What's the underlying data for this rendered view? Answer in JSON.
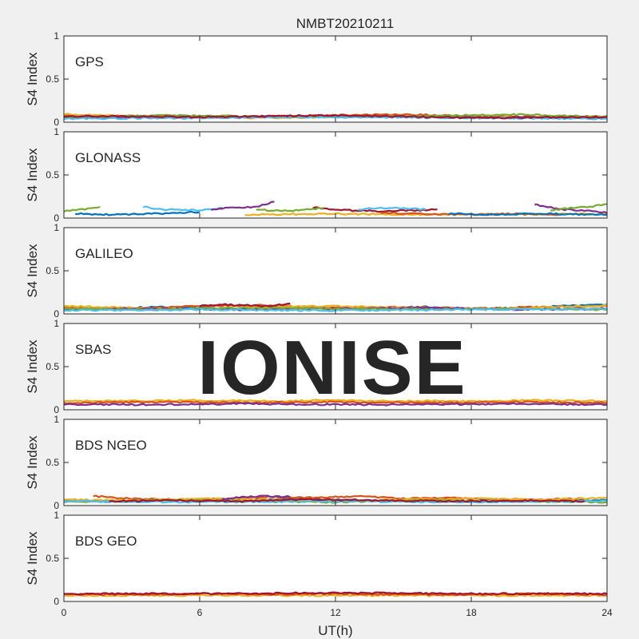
{
  "chart_data": {
    "type": "scatter",
    "title": "NMBT20210211",
    "xlabel": "UT(h)",
    "ylabel": "S4 Index",
    "xlim": [
      0,
      24
    ],
    "ylim": [
      0,
      1
    ],
    "x_ticks": [
      "0",
      "6",
      "12",
      "18",
      "24"
    ],
    "y_ticks": [
      "0",
      "0.5",
      "1"
    ],
    "watermark": "IONISE",
    "series_colors": [
      "#0072BD",
      "#D95319",
      "#EDB120",
      "#7E2F8E",
      "#77AC30",
      "#4DBEEE",
      "#A2142F"
    ],
    "panels": [
      {
        "name": "GPS",
        "tracks": [
          {
            "color": "#0072BD",
            "x": [
              0,
              4,
              8,
              12,
              16,
              20,
              24
            ],
            "y": [
              0.06,
              0.07,
              0.06,
              0.07,
              0.06,
              0.05,
              0.06
            ]
          },
          {
            "color": "#D95319",
            "x": [
              0,
              3,
              6,
              9,
              12,
              15,
              18,
              21,
              24
            ],
            "y": [
              0.08,
              0.07,
              0.06,
              0.07,
              0.08,
              0.09,
              0.07,
              0.06,
              0.07
            ]
          },
          {
            "color": "#EDB120",
            "x": [
              0,
              4,
              8,
              12,
              16,
              20,
              24
            ],
            "y": [
              0.09,
              0.06,
              0.05,
              0.06,
              0.07,
              0.06,
              0.05
            ]
          },
          {
            "color": "#7E2F8E",
            "x": [
              0,
              6,
              12,
              18,
              24
            ],
            "y": [
              0.05,
              0.06,
              0.07,
              0.06,
              0.05
            ]
          },
          {
            "color": "#77AC30",
            "x": [
              0,
              5,
              10,
              15,
              20,
              24
            ],
            "y": [
              0.06,
              0.08,
              0.06,
              0.07,
              0.09,
              0.06
            ]
          },
          {
            "color": "#4DBEEE",
            "x": [
              0,
              6,
              12,
              18,
              24
            ],
            "y": [
              0.04,
              0.05,
              0.06,
              0.05,
              0.04
            ]
          },
          {
            "color": "#A2142F",
            "x": [
              0,
              6,
              12,
              18,
              24
            ],
            "y": [
              0.07,
              0.06,
              0.08,
              0.05,
              0.06
            ]
          }
        ]
      },
      {
        "name": "GLONASS",
        "tracks": [
          {
            "color": "#77AC30",
            "x": [
              0,
              0.8,
              1.6
            ],
            "y": [
              0.08,
              0.1,
              0.13
            ]
          },
          {
            "color": "#0072BD",
            "x": [
              0.5,
              2,
              4,
              6
            ],
            "y": [
              0.05,
              0.04,
              0.05,
              0.07
            ]
          },
          {
            "color": "#4DBEEE",
            "x": [
              3.5,
              4.5,
              6,
              7
            ],
            "y": [
              0.13,
              0.1,
              0.09,
              0.12
            ]
          },
          {
            "color": "#7E2F8E",
            "x": [
              6.5,
              7.5,
              8.5,
              9.3
            ],
            "y": [
              0.1,
              0.12,
              0.13,
              0.19
            ]
          },
          {
            "color": "#A2142F",
            "x": [
              11,
              12.5,
              14,
              15.5,
              16.5
            ],
            "y": [
              0.12,
              0.09,
              0.08,
              0.09,
              0.1
            ]
          },
          {
            "color": "#77AC30",
            "x": [
              8.5,
              9.5,
              10.5,
              11.5
            ],
            "y": [
              0.1,
              0.08,
              0.09,
              0.12
            ]
          },
          {
            "color": "#EDB120",
            "x": [
              8,
              12,
              16,
              20,
              24
            ],
            "y": [
              0.04,
              0.05,
              0.04,
              0.04,
              0.05
            ]
          },
          {
            "color": "#D95319",
            "x": [
              14,
              16,
              18,
              20,
              22
            ],
            "y": [
              0.06,
              0.05,
              0.04,
              0.05,
              0.04
            ]
          },
          {
            "color": "#4DBEEE",
            "x": [
              13,
              14.5,
              16
            ],
            "y": [
              0.1,
              0.12,
              0.1
            ]
          },
          {
            "color": "#7E2F8E",
            "x": [
              20.8,
              22,
              23.5,
              24
            ],
            "y": [
              0.16,
              0.1,
              0.08,
              0.06
            ]
          },
          {
            "color": "#77AC30",
            "x": [
              21.5,
              22.5,
              23.5,
              24
            ],
            "y": [
              0.09,
              0.12,
              0.14,
              0.16
            ]
          },
          {
            "color": "#0072BD",
            "x": [
              17,
              19,
              21,
              24
            ],
            "y": [
              0.05,
              0.04,
              0.05,
              0.04
            ]
          }
        ]
      },
      {
        "name": "GALILEO",
        "tracks": [
          {
            "color": "#0072BD",
            "x": [
              0,
              2,
              4,
              6,
              8,
              10,
              12,
              14,
              16,
              18,
              20,
              22,
              24
            ],
            "y": [
              0.07,
              0.06,
              0.08,
              0.07,
              0.06,
              0.07,
              0.06,
              0.07,
              0.08,
              0.06,
              0.07,
              0.09,
              0.11
            ]
          },
          {
            "color": "#D95319",
            "x": [
              0,
              3,
              6,
              9,
              12,
              15,
              18,
              21,
              24
            ],
            "y": [
              0.08,
              0.06,
              0.09,
              0.1,
              0.07,
              0.08,
              0.06,
              0.08,
              0.09
            ]
          },
          {
            "color": "#EDB120",
            "x": [
              0,
              3,
              6,
              9,
              12,
              15,
              18,
              21,
              24
            ],
            "y": [
              0.09,
              0.07,
              0.06,
              0.08,
              0.09,
              0.07,
              0.06,
              0.07,
              0.1
            ]
          },
          {
            "color": "#7E2F8E",
            "x": [
              0,
              4,
              8,
              12,
              16,
              20,
              24
            ],
            "y": [
              0.05,
              0.06,
              0.05,
              0.06,
              0.07,
              0.05,
              0.06
            ]
          },
          {
            "color": "#77AC30",
            "x": [
              0,
              4,
              8,
              12,
              16,
              20,
              24
            ],
            "y": [
              0.06,
              0.05,
              0.07,
              0.06,
              0.05,
              0.06,
              0.05
            ]
          },
          {
            "color": "#4DBEEE",
            "x": [
              0,
              6,
              12,
              18,
              24
            ],
            "y": [
              0.04,
              0.05,
              0.04,
              0.05,
              0.06
            ]
          },
          {
            "color": "#A2142F",
            "x": [
              6,
              7,
              8,
              9,
              10
            ],
            "y": [
              0.09,
              0.11,
              0.1,
              0.09,
              0.12
            ]
          }
        ]
      },
      {
        "name": "SBAS",
        "tracks": [
          {
            "color": "#EDB120",
            "x": [
              0,
              3,
              6,
              9,
              12,
              15,
              18,
              21,
              24
            ],
            "y": [
              0.1,
              0.1,
              0.11,
              0.1,
              0.11,
              0.1,
              0.1,
              0.11,
              0.1
            ]
          },
          {
            "color": "#D95319",
            "x": [
              0,
              4,
              8,
              12,
              16,
              20,
              24
            ],
            "y": [
              0.08,
              0.09,
              0.08,
              0.09,
              0.08,
              0.09,
              0.08
            ]
          },
          {
            "color": "#7E2F8E",
            "x": [
              0,
              4,
              8,
              12,
              16,
              20,
              24
            ],
            "y": [
              0.06,
              0.06,
              0.07,
              0.06,
              0.06,
              0.07,
              0.06
            ]
          }
        ]
      },
      {
        "name": "BDS NGEO",
        "tracks": [
          {
            "color": "#0072BD",
            "x": [
              0,
              2,
              4,
              6,
              8,
              10,
              12,
              14,
              16,
              18,
              20,
              22,
              24
            ],
            "y": [
              0.06,
              0.05,
              0.06,
              0.07,
              0.06,
              0.08,
              0.07,
              0.06,
              0.07,
              0.08,
              0.06,
              0.07,
              0.06
            ]
          },
          {
            "color": "#D95319",
            "x": [
              1.3,
              3,
              5,
              7,
              9,
              11,
              13,
              15,
              17,
              19,
              21,
              23
            ],
            "y": [
              0.11,
              0.08,
              0.07,
              0.08,
              0.1,
              0.09,
              0.11,
              0.08,
              0.09,
              0.08,
              0.07,
              0.08
            ]
          },
          {
            "color": "#EDB120",
            "x": [
              0,
              3,
              6,
              9,
              12,
              15,
              18,
              21,
              24
            ],
            "y": [
              0.07,
              0.06,
              0.08,
              0.07,
              0.06,
              0.07,
              0.08,
              0.07,
              0.09
            ]
          },
          {
            "color": "#7E2F8E",
            "x": [
              7,
              8,
              9,
              10
            ],
            "y": [
              0.08,
              0.1,
              0.11,
              0.1
            ]
          },
          {
            "color": "#77AC30",
            "x": [
              0,
              4,
              8,
              12,
              16,
              20,
              24
            ],
            "y": [
              0.04,
              0.06,
              0.05,
              0.04,
              0.06,
              0.05,
              0.04
            ]
          },
          {
            "color": "#4DBEEE",
            "x": [
              0,
              6,
              12,
              18,
              24
            ],
            "y": [
              0.05,
              0.04,
              0.05,
              0.04,
              0.05
            ]
          },
          {
            "color": "#A2142F",
            "x": [
              2,
              5,
              8,
              11,
              14,
              17,
              20,
              23
            ],
            "y": [
              0.05,
              0.06,
              0.05,
              0.07,
              0.06,
              0.05,
              0.06,
              0.05
            ]
          }
        ]
      },
      {
        "name": "BDS GEO",
        "tracks": [
          {
            "color": "#EDB120",
            "x": [
              0,
              4,
              8,
              12,
              16,
              20,
              24
            ],
            "y": [
              0.07,
              0.07,
              0.07,
              0.07,
              0.07,
              0.07,
              0.07
            ]
          },
          {
            "color": "#D95319",
            "x": [
              0,
              3,
              6,
              9,
              12,
              15,
              18,
              21,
              24
            ],
            "y": [
              0.08,
              0.08,
              0.09,
              0.08,
              0.09,
              0.08,
              0.08,
              0.09,
              0.08
            ]
          },
          {
            "color": "#A2142F",
            "x": [
              0,
              6,
              12,
              18,
              24
            ],
            "y": [
              0.09,
              0.09,
              0.1,
              0.09,
              0.09
            ]
          }
        ]
      }
    ]
  }
}
